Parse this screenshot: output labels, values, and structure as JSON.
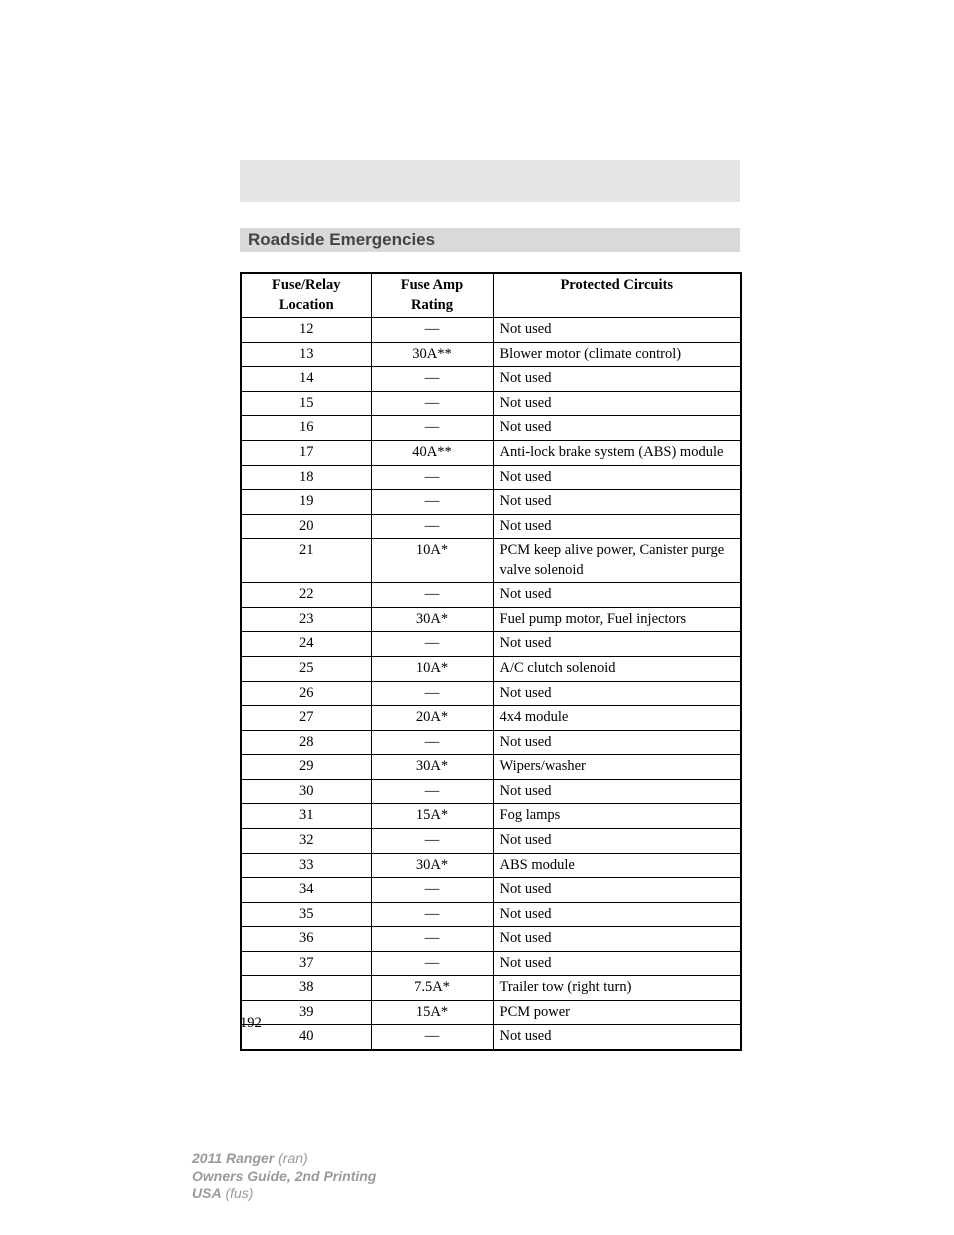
{
  "section_title": "Roadside Emergencies",
  "page_number": "192",
  "table": {
    "headers": {
      "col1_line1": "Fuse/Relay",
      "col1_line2": "Location",
      "col2_line1": "Fuse Amp",
      "col2_line2": "Rating",
      "col3": "Protected Circuits"
    },
    "rows": [
      {
        "loc": "12",
        "amp": "—",
        "circ": "Not used"
      },
      {
        "loc": "13",
        "amp": "30A**",
        "circ": "Blower motor (climate control)"
      },
      {
        "loc": "14",
        "amp": "—",
        "circ": "Not used"
      },
      {
        "loc": "15",
        "amp": "—",
        "circ": "Not used"
      },
      {
        "loc": "16",
        "amp": "—",
        "circ": "Not used"
      },
      {
        "loc": "17",
        "amp": "40A**",
        "circ": "Anti-lock brake system (ABS) module"
      },
      {
        "loc": "18",
        "amp": "—",
        "circ": "Not used"
      },
      {
        "loc": "19",
        "amp": "—",
        "circ": "Not used"
      },
      {
        "loc": "20",
        "amp": "—",
        "circ": "Not used"
      },
      {
        "loc": "21",
        "amp": "10A*",
        "circ": "PCM keep alive power, Canister purge valve solenoid"
      },
      {
        "loc": "22",
        "amp": "—",
        "circ": "Not used"
      },
      {
        "loc": "23",
        "amp": "30A*",
        "circ": "Fuel pump motor, Fuel injectors"
      },
      {
        "loc": "24",
        "amp": "—",
        "circ": "Not used"
      },
      {
        "loc": "25",
        "amp": "10A*",
        "circ": "A/C clutch solenoid"
      },
      {
        "loc": "26",
        "amp": "—",
        "circ": "Not used"
      },
      {
        "loc": "27",
        "amp": "20A*",
        "circ": "4x4 module"
      },
      {
        "loc": "28",
        "amp": "—",
        "circ": "Not used"
      },
      {
        "loc": "29",
        "amp": "30A*",
        "circ": "Wipers/washer"
      },
      {
        "loc": "30",
        "amp": "—",
        "circ": "Not used"
      },
      {
        "loc": "31",
        "amp": "15A*",
        "circ": "Fog lamps"
      },
      {
        "loc": "32",
        "amp": "—",
        "circ": "Not used"
      },
      {
        "loc": "33",
        "amp": "30A*",
        "circ": "ABS module"
      },
      {
        "loc": "34",
        "amp": "—",
        "circ": "Not used"
      },
      {
        "loc": "35",
        "amp": "—",
        "circ": "Not used"
      },
      {
        "loc": "36",
        "amp": "—",
        "circ": "Not used"
      },
      {
        "loc": "37",
        "amp": "—",
        "circ": "Not used"
      },
      {
        "loc": "38",
        "amp": "7.5A*",
        "circ": "Trailer tow (right turn)"
      },
      {
        "loc": "39",
        "amp": "15A*",
        "circ": "PCM power"
      },
      {
        "loc": "40",
        "amp": "—",
        "circ": "Not used"
      }
    ]
  },
  "footer": {
    "line1_bold": "2011 Ranger",
    "line1_rest": " (ran)",
    "line2": "Owners Guide, 2nd Printing",
    "line3_bold": "USA",
    "line3_rest": " (fus)"
  },
  "style": {
    "page_bg": "#ffffff",
    "band_bg": "#d9d9d9",
    "topband_bg": "#e5e5e5",
    "title_color": "#444444",
    "footer_color": "#9a9a9a",
    "border_color": "#000000",
    "body_font_size_pt": 11,
    "title_font_size_pt": 13
  }
}
